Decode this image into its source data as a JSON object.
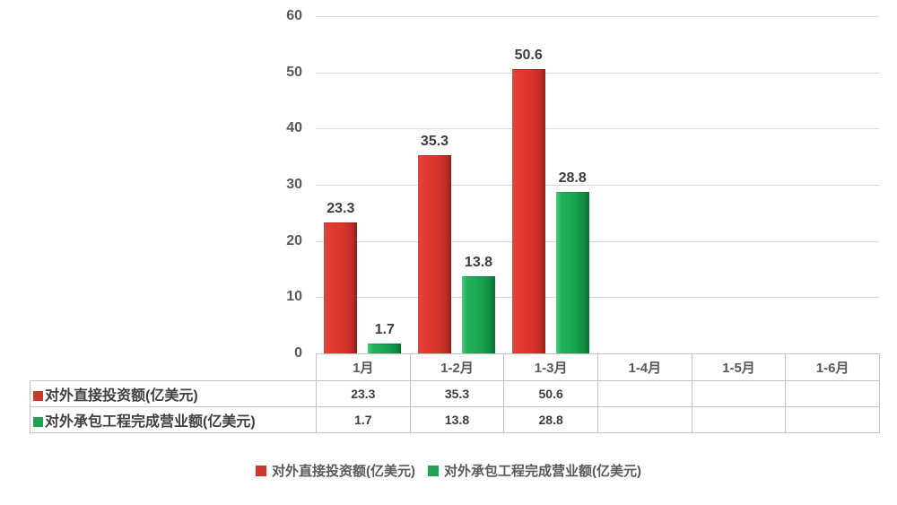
{
  "colors": {
    "series_red": "#ce372d",
    "series_green": "#1ea453",
    "gridline": "#d9d9d9",
    "table_border": "#c4c4c4",
    "axis_text": "#595959",
    "value_text": "#3d3d3d"
  },
  "chart_data": {
    "type": "bar",
    "title": "",
    "xlabel": "",
    "ylabel": "",
    "categories": [
      "1月",
      "1-2月",
      "1-3月",
      "1-4月",
      "1-5月",
      "1-6月"
    ],
    "series": [
      {
        "key": "direct-investment",
        "name": "对外直接投资额(亿美元)",
        "color_key": "series_red",
        "values": [
          23.3,
          35.3,
          50.6,
          null,
          null,
          null
        ]
      },
      {
        "key": "contracted-projects",
        "name": "对外承包工程完成营业额(亿美元)",
        "color_key": "series_green",
        "values": [
          1.7,
          13.8,
          28.8,
          null,
          null,
          null
        ]
      }
    ],
    "ylim": [
      0,
      60
    ],
    "yticks": [
      0,
      10,
      20,
      30,
      40,
      50,
      60
    ],
    "grid": true,
    "legend_position": "bottom",
    "data_table_shown": true
  },
  "legend": {
    "items": [
      {
        "label": "对外直接投资额(亿美元)",
        "color_key": "series_red"
      },
      {
        "label": "对外承包工程完成营业额(亿美元)",
        "color_key": "series_green"
      }
    ]
  }
}
